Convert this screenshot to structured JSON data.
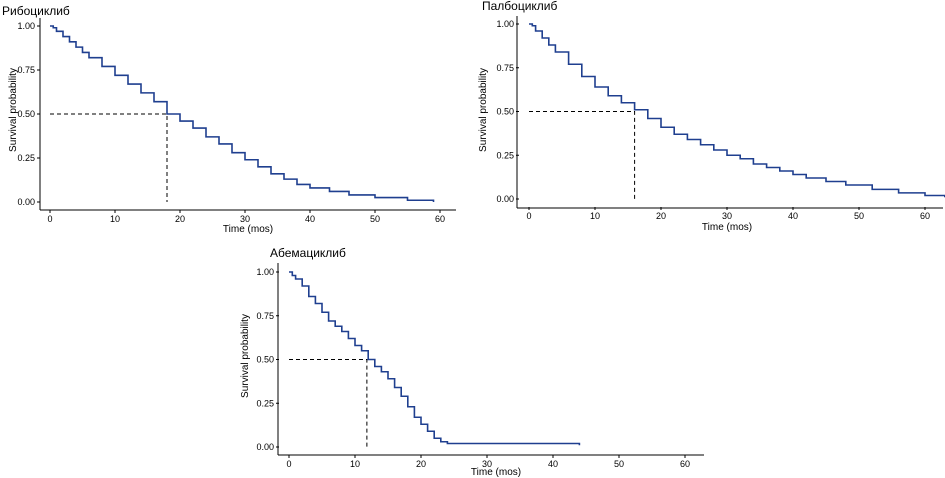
{
  "chart_data": [
    {
      "type": "line",
      "title": "Рибоциклиб",
      "xlabel": "Time (mos)",
      "ylabel": "Survival probability",
      "xlim": [
        0,
        60
      ],
      "ylim": [
        0,
        1
      ],
      "x_ticks": [
        0,
        10,
        20,
        30,
        40,
        50,
        60
      ],
      "y_ticks": [
        "0.00",
        "0.25",
        "0.50",
        "0.75",
        "1.00"
      ],
      "median": 18,
      "series": [
        {
          "color": "#1f3f8f",
          "x": [
            0,
            0.5,
            1,
            2,
            3,
            4,
            5,
            6,
            8,
            10,
            12,
            14,
            16,
            18,
            20,
            22,
            24,
            26,
            28,
            30,
            32,
            34,
            36,
            38,
            40,
            43,
            46,
            50,
            55,
            59
          ],
          "y": [
            1.0,
            0.99,
            0.97,
            0.94,
            0.91,
            0.88,
            0.85,
            0.82,
            0.77,
            0.72,
            0.67,
            0.62,
            0.57,
            0.5,
            0.46,
            0.42,
            0.37,
            0.33,
            0.28,
            0.24,
            0.2,
            0.16,
            0.13,
            0.1,
            0.08,
            0.06,
            0.04,
            0.025,
            0.01,
            0.0
          ]
        }
      ]
    },
    {
      "type": "line",
      "title": "Палбоциклиб",
      "xlabel": "Time (mos)",
      "ylabel": "Survival probability",
      "xlim": [
        0,
        60
      ],
      "ylim": [
        0,
        1
      ],
      "x_ticks": [
        0,
        10,
        20,
        30,
        40,
        50,
        60
      ],
      "y_ticks": [
        "0.00",
        "0.25",
        "0.50",
        "0.75",
        "1.00"
      ],
      "median": 16,
      "series": [
        {
          "color": "#1f3f8f",
          "x": [
            0,
            0.5,
            1,
            2,
            3,
            4,
            6,
            8,
            10,
            12,
            14,
            16,
            18,
            20,
            22,
            24,
            26,
            28,
            30,
            32,
            34,
            36,
            38,
            40,
            42,
            45,
            48,
            52,
            56,
            60,
            63
          ],
          "y": [
            1.0,
            0.99,
            0.96,
            0.92,
            0.88,
            0.84,
            0.77,
            0.7,
            0.64,
            0.59,
            0.55,
            0.51,
            0.46,
            0.41,
            0.37,
            0.34,
            0.31,
            0.28,
            0.25,
            0.23,
            0.2,
            0.18,
            0.16,
            0.14,
            0.12,
            0.1,
            0.08,
            0.055,
            0.035,
            0.02,
            0.01
          ]
        }
      ]
    },
    {
      "type": "line",
      "title": "Абемациклиб",
      "xlabel": "Time (mos)",
      "ylabel": "Survival probability",
      "xlim": [
        0,
        60
      ],
      "ylim": [
        0,
        1
      ],
      "x_ticks": [
        0,
        10,
        20,
        30,
        40,
        50,
        60
      ],
      "y_ticks": [
        "0.00",
        "0.25",
        "0.50",
        "0.75",
        "1.00"
      ],
      "median": 11.8,
      "series": [
        {
          "color": "#1f3f8f",
          "x": [
            0,
            0.5,
            1,
            2,
            3,
            4,
            5,
            6,
            7,
            8,
            9,
            10,
            11,
            12,
            13,
            14,
            15,
            16,
            17,
            18,
            19,
            20,
            21,
            22,
            23,
            24,
            25,
            30,
            35,
            40,
            44
          ],
          "y": [
            1.0,
            0.98,
            0.96,
            0.92,
            0.86,
            0.82,
            0.77,
            0.72,
            0.69,
            0.66,
            0.62,
            0.58,
            0.55,
            0.5,
            0.46,
            0.43,
            0.39,
            0.34,
            0.29,
            0.23,
            0.17,
            0.13,
            0.09,
            0.05,
            0.03,
            0.02,
            0.02,
            0.02,
            0.02,
            0.02,
            0.01
          ]
        }
      ]
    }
  ]
}
